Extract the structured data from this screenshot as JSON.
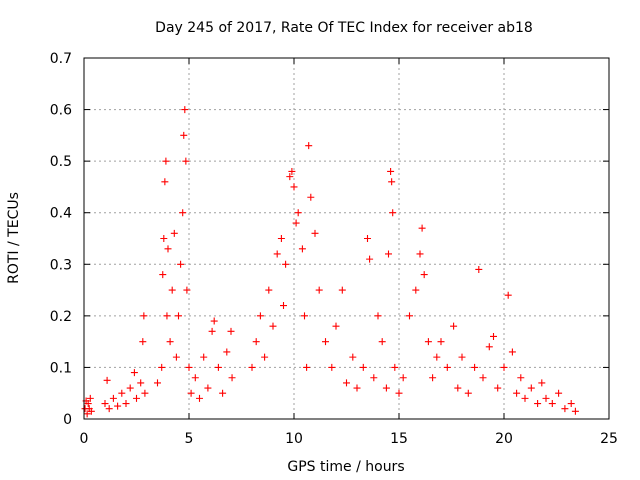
{
  "chart_data": {
    "type": "scatter",
    "title": "Day 245 of 2017, Rate Of TEC Index for receiver ab18",
    "xlabel": "GPS time / hours",
    "ylabel": "ROTI / TECUs",
    "xlim": [
      0,
      25
    ],
    "ylim": [
      0,
      0.7
    ],
    "xticks": [
      0,
      5,
      10,
      15,
      20,
      25
    ],
    "xtick_labels": [
      "0",
      "5",
      "10",
      "15",
      "20",
      "25"
    ],
    "yticks": [
      0,
      0.1,
      0.2,
      0.3,
      0.4,
      0.5,
      0.6,
      0.7
    ],
    "ytick_labels": [
      "0",
      "0.1",
      "0.2",
      "0.3",
      "0.4",
      "0.5",
      "0.6",
      "0.7"
    ],
    "grid": true,
    "marker": "+",
    "color": "#ff0000",
    "series": [
      {
        "points": [
          [
            0.05,
            0.02
          ],
          [
            0.1,
            0.035
          ],
          [
            0.15,
            0.01
          ],
          [
            0.2,
            0.03
          ],
          [
            0.25,
            0.02
          ],
          [
            0.3,
            0.04
          ],
          [
            0.35,
            0.015
          ],
          [
            1.0,
            0.03
          ],
          [
            1.1,
            0.075
          ],
          [
            1.2,
            0.02
          ],
          [
            1.4,
            0.04
          ],
          [
            1.6,
            0.025
          ],
          [
            1.8,
            0.05
          ],
          [
            2.0,
            0.03
          ],
          [
            2.2,
            0.06
          ],
          [
            2.4,
            0.09
          ],
          [
            2.5,
            0.04
          ],
          [
            2.7,
            0.07
          ],
          [
            2.8,
            0.15
          ],
          [
            2.85,
            0.2
          ],
          [
            2.9,
            0.05
          ],
          [
            3.5,
            0.07
          ],
          [
            3.7,
            0.1
          ],
          [
            3.75,
            0.28
          ],
          [
            3.8,
            0.35
          ],
          [
            3.85,
            0.46
          ],
          [
            3.9,
            0.5
          ],
          [
            3.95,
            0.2
          ],
          [
            4.0,
            0.33
          ],
          [
            4.1,
            0.15
          ],
          [
            4.2,
            0.25
          ],
          [
            4.3,
            0.36
          ],
          [
            4.4,
            0.12
          ],
          [
            4.5,
            0.2
          ],
          [
            4.6,
            0.3
          ],
          [
            4.7,
            0.4
          ],
          [
            4.75,
            0.55
          ],
          [
            4.8,
            0.6
          ],
          [
            4.85,
            0.5
          ],
          [
            4.9,
            0.25
          ],
          [
            5.0,
            0.1
          ],
          [
            5.1,
            0.05
          ],
          [
            5.3,
            0.08
          ],
          [
            5.5,
            0.04
          ],
          [
            5.7,
            0.12
          ],
          [
            5.9,
            0.06
          ],
          [
            6.1,
            0.17
          ],
          [
            6.2,
            0.19
          ],
          [
            6.4,
            0.1
          ],
          [
            6.6,
            0.05
          ],
          [
            6.8,
            0.13
          ],
          [
            7.0,
            0.17
          ],
          [
            7.05,
            0.08
          ],
          [
            8.0,
            0.1
          ],
          [
            8.2,
            0.15
          ],
          [
            8.4,
            0.2
          ],
          [
            8.6,
            0.12
          ],
          [
            8.8,
            0.25
          ],
          [
            9.0,
            0.18
          ],
          [
            9.2,
            0.32
          ],
          [
            9.4,
            0.35
          ],
          [
            9.5,
            0.22
          ],
          [
            9.6,
            0.3
          ],
          [
            9.8,
            0.47
          ],
          [
            9.9,
            0.48
          ],
          [
            10.0,
            0.45
          ],
          [
            10.1,
            0.38
          ],
          [
            10.2,
            0.4
          ],
          [
            10.4,
            0.33
          ],
          [
            10.5,
            0.2
          ],
          [
            10.6,
            0.1
          ],
          [
            10.7,
            0.53
          ],
          [
            10.8,
            0.43
          ],
          [
            11.0,
            0.36
          ],
          [
            11.2,
            0.25
          ],
          [
            11.5,
            0.15
          ],
          [
            11.8,
            0.1
          ],
          [
            12.0,
            0.18
          ],
          [
            12.3,
            0.25
          ],
          [
            12.5,
            0.07
          ],
          [
            12.8,
            0.12
          ],
          [
            13.0,
            0.06
          ],
          [
            13.3,
            0.1
          ],
          [
            13.5,
            0.35
          ],
          [
            13.6,
            0.31
          ],
          [
            13.8,
            0.08
          ],
          [
            14.0,
            0.2
          ],
          [
            14.2,
            0.15
          ],
          [
            14.4,
            0.06
          ],
          [
            14.5,
            0.32
          ],
          [
            14.6,
            0.48
          ],
          [
            14.65,
            0.46
          ],
          [
            14.7,
            0.4
          ],
          [
            14.8,
            0.1
          ],
          [
            15.0,
            0.05
          ],
          [
            15.2,
            0.08
          ],
          [
            15.5,
            0.2
          ],
          [
            15.8,
            0.25
          ],
          [
            16.0,
            0.32
          ],
          [
            16.1,
            0.37
          ],
          [
            16.2,
            0.28
          ],
          [
            16.4,
            0.15
          ],
          [
            16.6,
            0.08
          ],
          [
            16.8,
            0.12
          ],
          [
            17.0,
            0.15
          ],
          [
            17.3,
            0.1
          ],
          [
            17.6,
            0.18
          ],
          [
            17.8,
            0.06
          ],
          [
            18.0,
            0.12
          ],
          [
            18.3,
            0.05
          ],
          [
            18.6,
            0.1
          ],
          [
            18.8,
            0.29
          ],
          [
            19.0,
            0.08
          ],
          [
            19.3,
            0.14
          ],
          [
            19.5,
            0.16
          ],
          [
            19.7,
            0.06
          ],
          [
            20.0,
            0.1
          ],
          [
            20.2,
            0.24
          ],
          [
            20.4,
            0.13
          ],
          [
            20.6,
            0.05
          ],
          [
            20.8,
            0.08
          ],
          [
            21.0,
            0.04
          ],
          [
            21.3,
            0.06
          ],
          [
            21.6,
            0.03
          ],
          [
            21.8,
            0.07
          ],
          [
            22.0,
            0.04
          ],
          [
            22.3,
            0.03
          ],
          [
            22.6,
            0.05
          ],
          [
            22.9,
            0.02
          ],
          [
            23.2,
            0.03
          ],
          [
            23.4,
            0.015
          ]
        ]
      }
    ]
  }
}
